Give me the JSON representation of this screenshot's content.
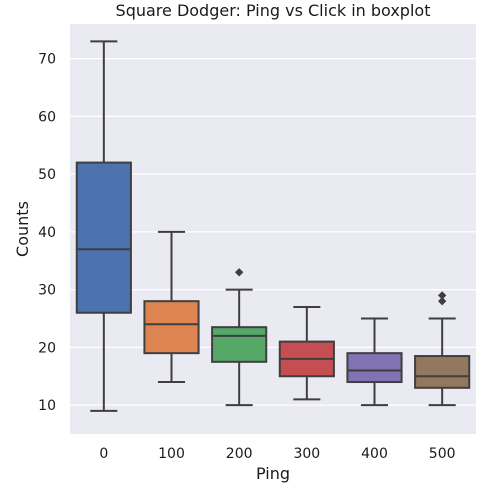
{
  "chart_data": {
    "type": "box",
    "title": "Square Dodger: Ping vs Click in boxplot",
    "xlabel": "Ping",
    "ylabel": "Counts",
    "categories": [
      "0",
      "100",
      "200",
      "300",
      "400",
      "500"
    ],
    "y_ticks": [
      10,
      20,
      30,
      40,
      50,
      60,
      70
    ],
    "ylim": [
      5,
      76
    ],
    "grid": true,
    "colors": [
      "#4c72b0",
      "#dd8452",
      "#55a868",
      "#c44e52",
      "#8172b3",
      "#937860"
    ],
    "boxes": [
      {
        "category": "0",
        "whisker_low": 9,
        "q1": 26,
        "median": 37,
        "q3": 52,
        "whisker_high": 73,
        "outliers": []
      },
      {
        "category": "100",
        "whisker_low": 14,
        "q1": 19,
        "median": 24,
        "q3": 28,
        "whisker_high": 40,
        "outliers": []
      },
      {
        "category": "200",
        "whisker_low": 10,
        "q1": 17.5,
        "median": 22,
        "q3": 23.5,
        "whisker_high": 30,
        "outliers": [
          33
        ]
      },
      {
        "category": "300",
        "whisker_low": 11,
        "q1": 15,
        "median": 18,
        "q3": 21,
        "whisker_high": 27,
        "outliers": []
      },
      {
        "category": "400",
        "whisker_low": 10,
        "q1": 14,
        "median": 16,
        "q3": 19,
        "whisker_high": 25,
        "outliers": []
      },
      {
        "category": "500",
        "whisker_low": 10,
        "q1": 13,
        "median": 15,
        "q3": 18.5,
        "whisker_high": 25,
        "outliers": [
          28,
          29
        ]
      }
    ]
  }
}
